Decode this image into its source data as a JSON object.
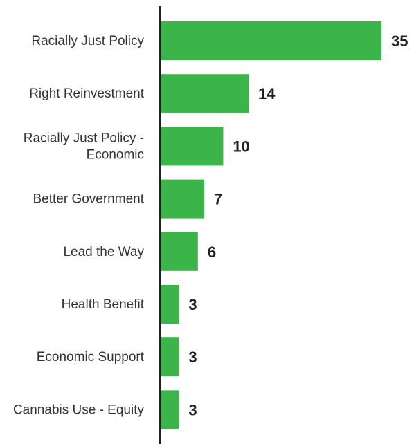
{
  "chart_data": {
    "type": "bar",
    "orientation": "horizontal",
    "categories": [
      [
        "Racially Just Policy"
      ],
      [
        "Right Reinvestment"
      ],
      [
        "Racially Just Policy -",
        "Economic"
      ],
      [
        "Better Government"
      ],
      [
        "Lead the Way"
      ],
      [
        "Health Benefit"
      ],
      [
        "Economic Support"
      ],
      [
        "Cannabis Use - Equity"
      ]
    ],
    "values": [
      35,
      14,
      10,
      7,
      6,
      3,
      3,
      3
    ],
    "value_labels": [
      "35",
      "14",
      "10",
      "7",
      "6",
      "3",
      "3",
      "3"
    ],
    "title": "",
    "xlabel": "",
    "ylabel": "",
    "xlim": [
      0,
      35
    ],
    "grid": false,
    "legend": "none",
    "colors": {
      "bar": "#3bb54a",
      "axis": "#222222",
      "label": "#333333",
      "value": "#222222"
    }
  }
}
